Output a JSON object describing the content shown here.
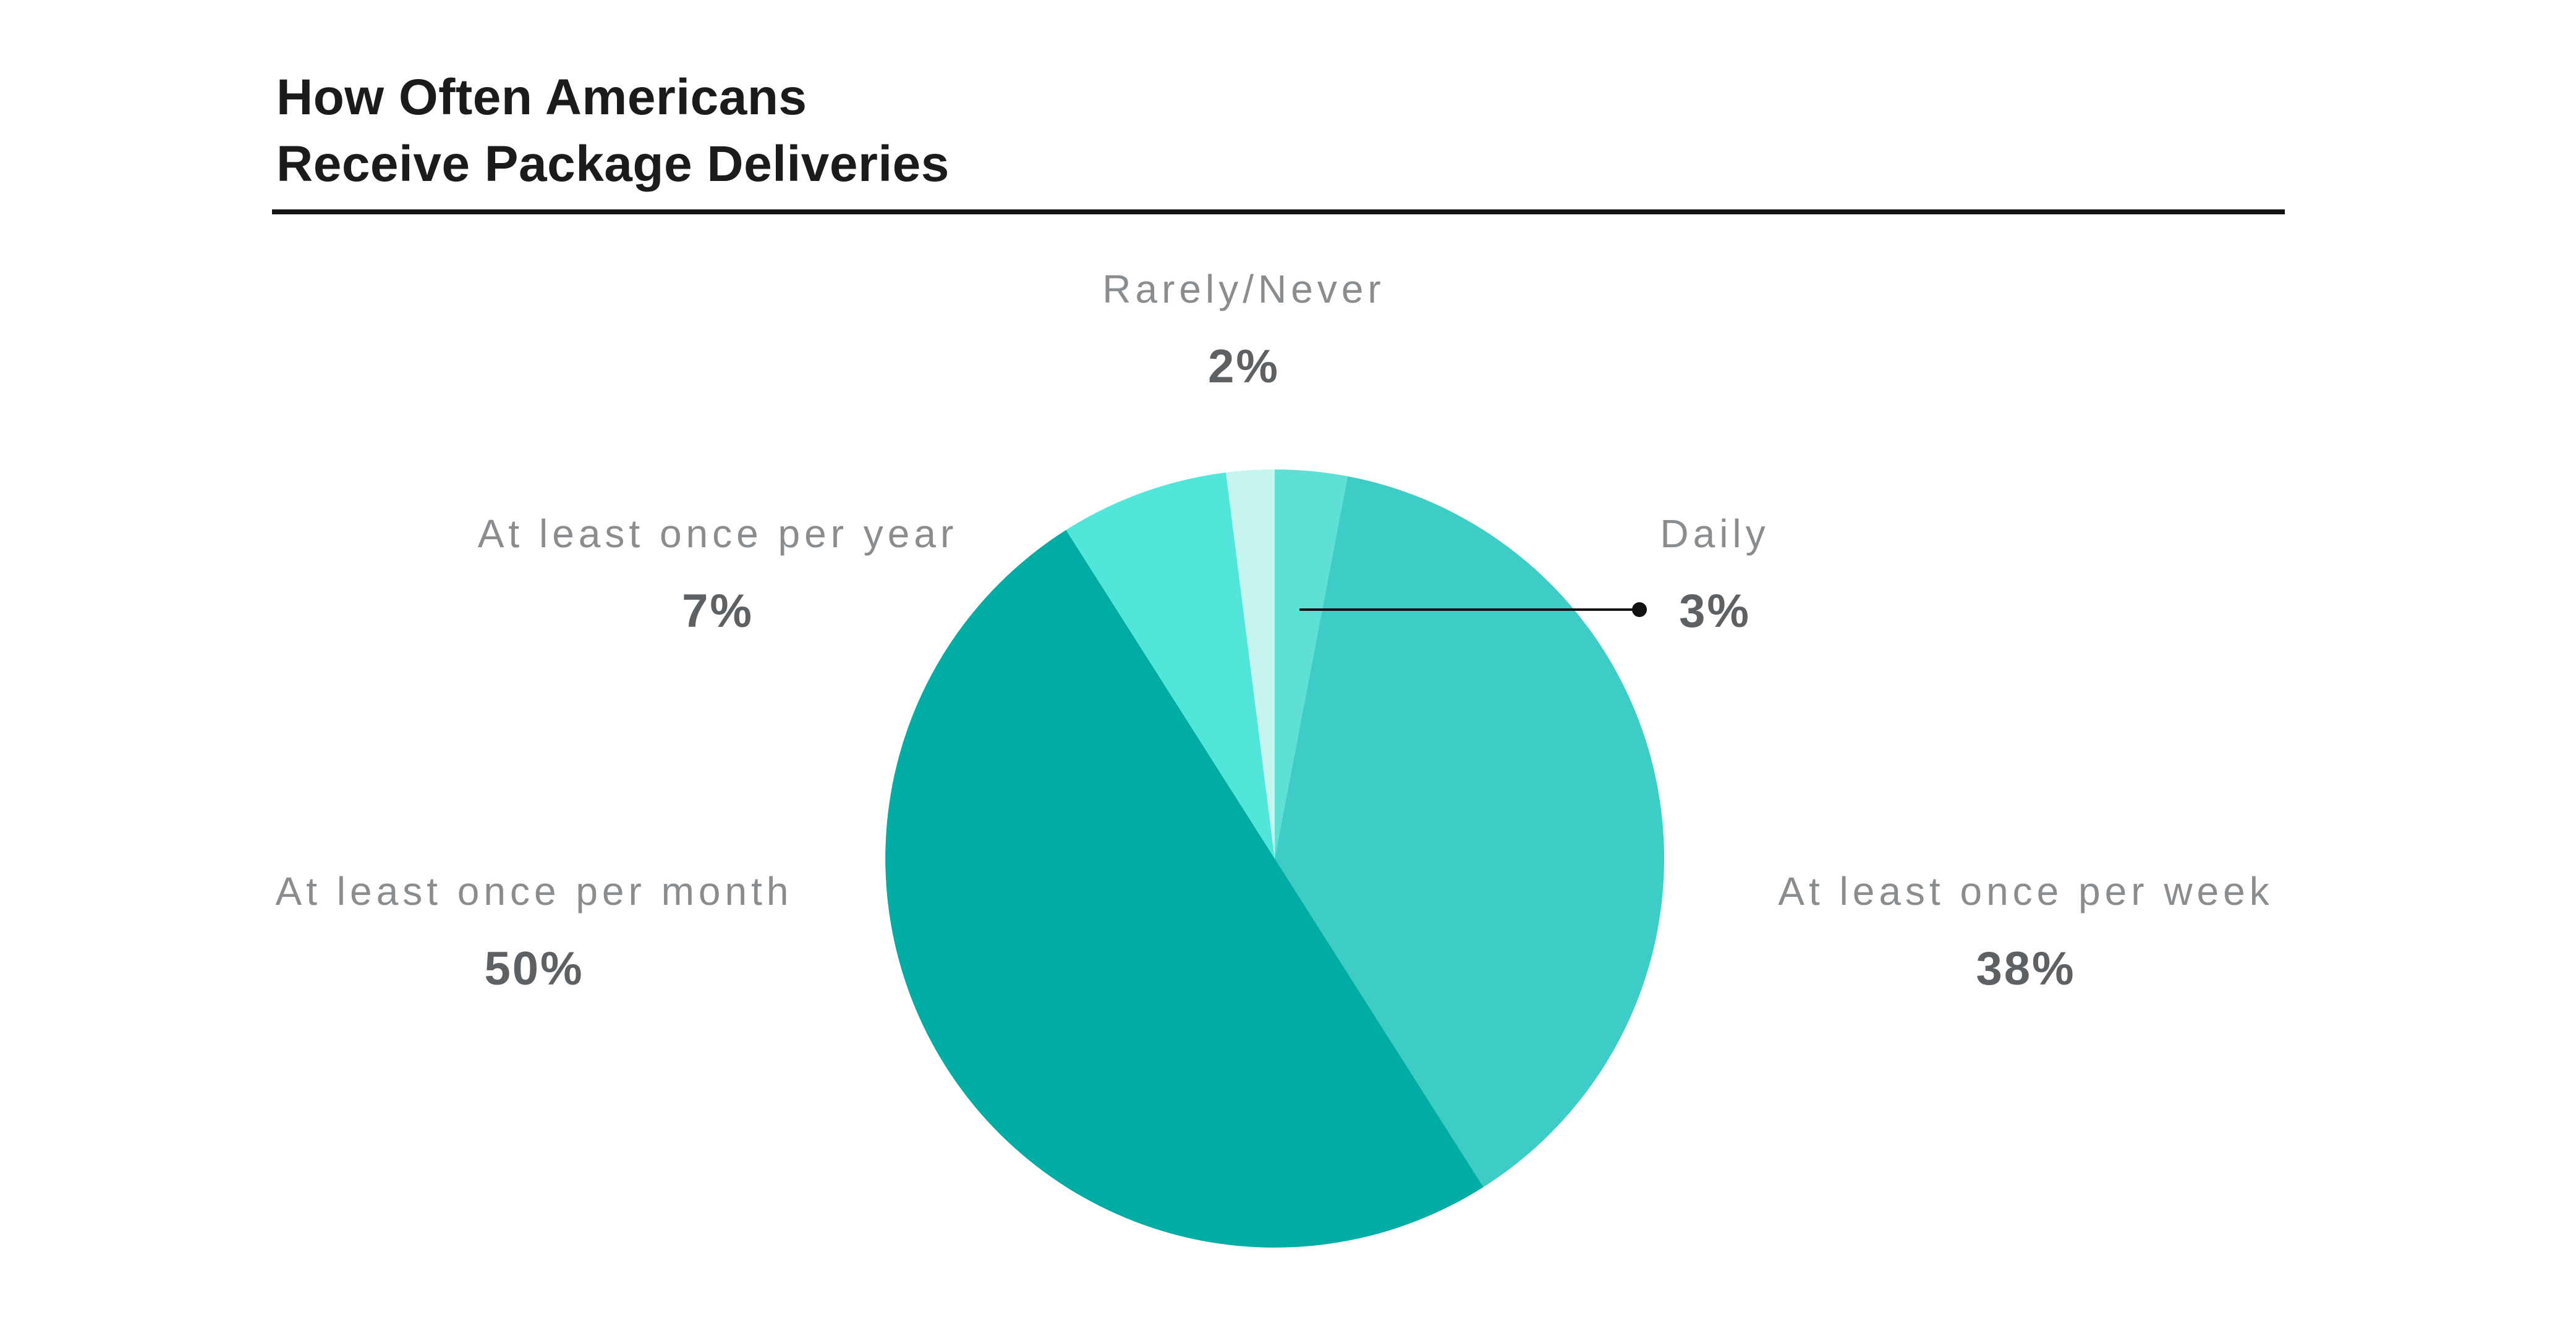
{
  "title": {
    "line1": "How Often Americans",
    "line2": "Receive Package Deliveries"
  },
  "colors": {
    "background": "#FFFFFF",
    "title_text": "#1B1B1B",
    "divider_rule": "#141414",
    "category_label": "#8A8D90",
    "value_label": "#5D6164",
    "leader_line": "#111111"
  },
  "chart_data": {
    "type": "pie",
    "title": "How Often Americans Receive Package Deliveries",
    "legend": "none",
    "labels_position": "outside",
    "start_angle": "12 o'clock",
    "direction": "clockwise",
    "slices": [
      {
        "label": "Daily",
        "value_pct": 3,
        "value_label": "3%",
        "color": "#5FE0D4",
        "leader_line": true
      },
      {
        "label": "At least once per week",
        "value_pct": 38,
        "value_label": "38%",
        "color": "#3ECCC6",
        "leader_line": false
      },
      {
        "label": "At least once per month",
        "value_pct": 50,
        "value_label": "50%",
        "color": "#00ADA5",
        "leader_line": false
      },
      {
        "label": "At least once per year",
        "value_pct": 7,
        "value_label": "7%",
        "color": "#52E6DB",
        "leader_line": false
      },
      {
        "label": "Rarely/Never",
        "value_pct": 2,
        "value_label": "2%",
        "color": "#C6F4EF",
        "leader_line": false
      }
    ]
  }
}
